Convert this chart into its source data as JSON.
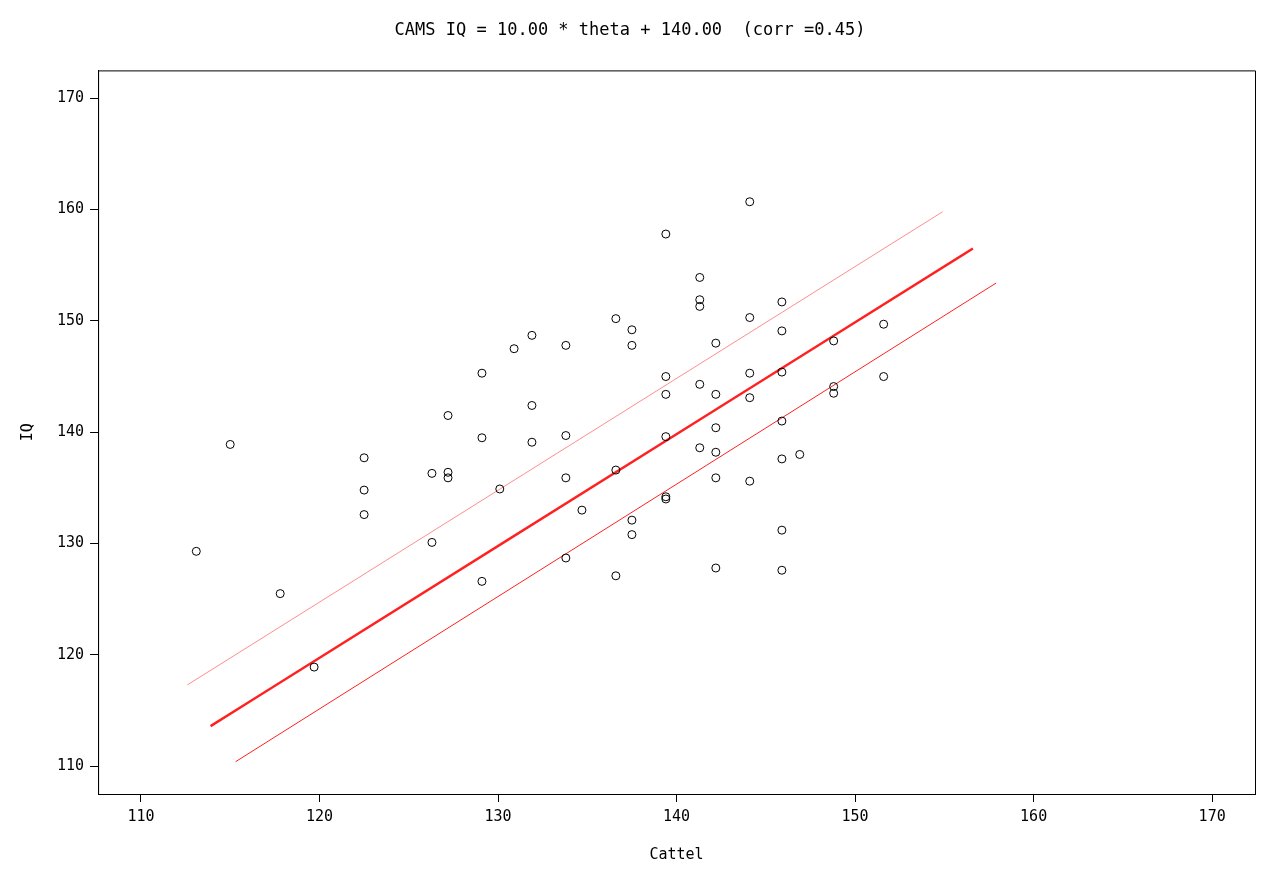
{
  "chart_data": {
    "type": "scatter",
    "title": "CAMS IQ = 10.00 * theta + 140.00  (corr =0.45)",
    "xlabel": "Cattel",
    "ylabel": "IQ",
    "xlim": [
      107.6,
      172.4
    ],
    "xticks": [
      110,
      120,
      130,
      140,
      150,
      160,
      170
    ],
    "ylim": [
      107.5,
      172.5
    ],
    "yticks": [
      110,
      120,
      130,
      140,
      150,
      160,
      170
    ],
    "series": [
      {
        "marker": "circle",
        "color": "#000000",
        "x": [
          113.1,
          115.0,
          117.8,
          119.7,
          122.5,
          122.5,
          122.5,
          126.3,
          126.3,
          127.2,
          127.2,
          127.2,
          129.1,
          129.1,
          129.1,
          130.1,
          130.9,
          131.9,
          131.9,
          131.9,
          133.8,
          133.8,
          133.8,
          133.8,
          134.7,
          136.6,
          136.6,
          136.6,
          137.5,
          137.5,
          137.5,
          137.5,
          139.4,
          139.4,
          139.4,
          139.4,
          139.4,
          139.4,
          141.3,
          141.3,
          141.3,
          141.3,
          141.3,
          142.2,
          142.2,
          142.2,
          142.2,
          142.2,
          142.2,
          144.1,
          144.1,
          144.1,
          144.1,
          144.1,
          145.9,
          145.9,
          145.9,
          145.9,
          145.9,
          145.9,
          145.9,
          146.9,
          148.8,
          148.8,
          148.8,
          151.6,
          151.6
        ],
        "values": [
          129.3,
          138.9,
          125.5,
          118.9,
          137.7,
          134.8,
          132.6,
          136.3,
          130.1,
          141.5,
          136.4,
          135.9,
          145.3,
          139.5,
          126.6,
          134.9,
          147.5,
          148.7,
          142.4,
          139.1,
          147.8,
          139.7,
          135.9,
          128.7,
          133.0,
          150.2,
          136.6,
          127.1,
          149.2,
          147.8,
          132.1,
          130.8,
          157.8,
          145.0,
          143.4,
          139.6,
          134.2,
          134.0,
          153.9,
          151.9,
          151.3,
          144.3,
          138.6,
          148.0,
          143.4,
          140.4,
          138.2,
          135.9,
          127.8,
          160.7,
          150.3,
          145.3,
          143.1,
          135.6,
          151.7,
          149.1,
          145.4,
          141.0,
          137.6,
          131.2,
          127.6,
          138.0,
          148.2,
          144.1,
          143.5,
          149.7,
          145.0
        ]
      },
      {
        "type": "line",
        "color": "#ff2020",
        "x": [
          113.9,
          156.6
        ],
        "values": [
          113.6,
          156.5
        ]
      },
      {
        "type": "line",
        "color": "#ff7070",
        "x": [
          112.6,
          154.9
        ],
        "values": [
          117.3,
          159.8
        ]
      },
      {
        "type": "line",
        "color": "#ff2020",
        "x": [
          115.3,
          157.9
        ],
        "values": [
          110.4,
          153.4
        ]
      }
    ]
  }
}
